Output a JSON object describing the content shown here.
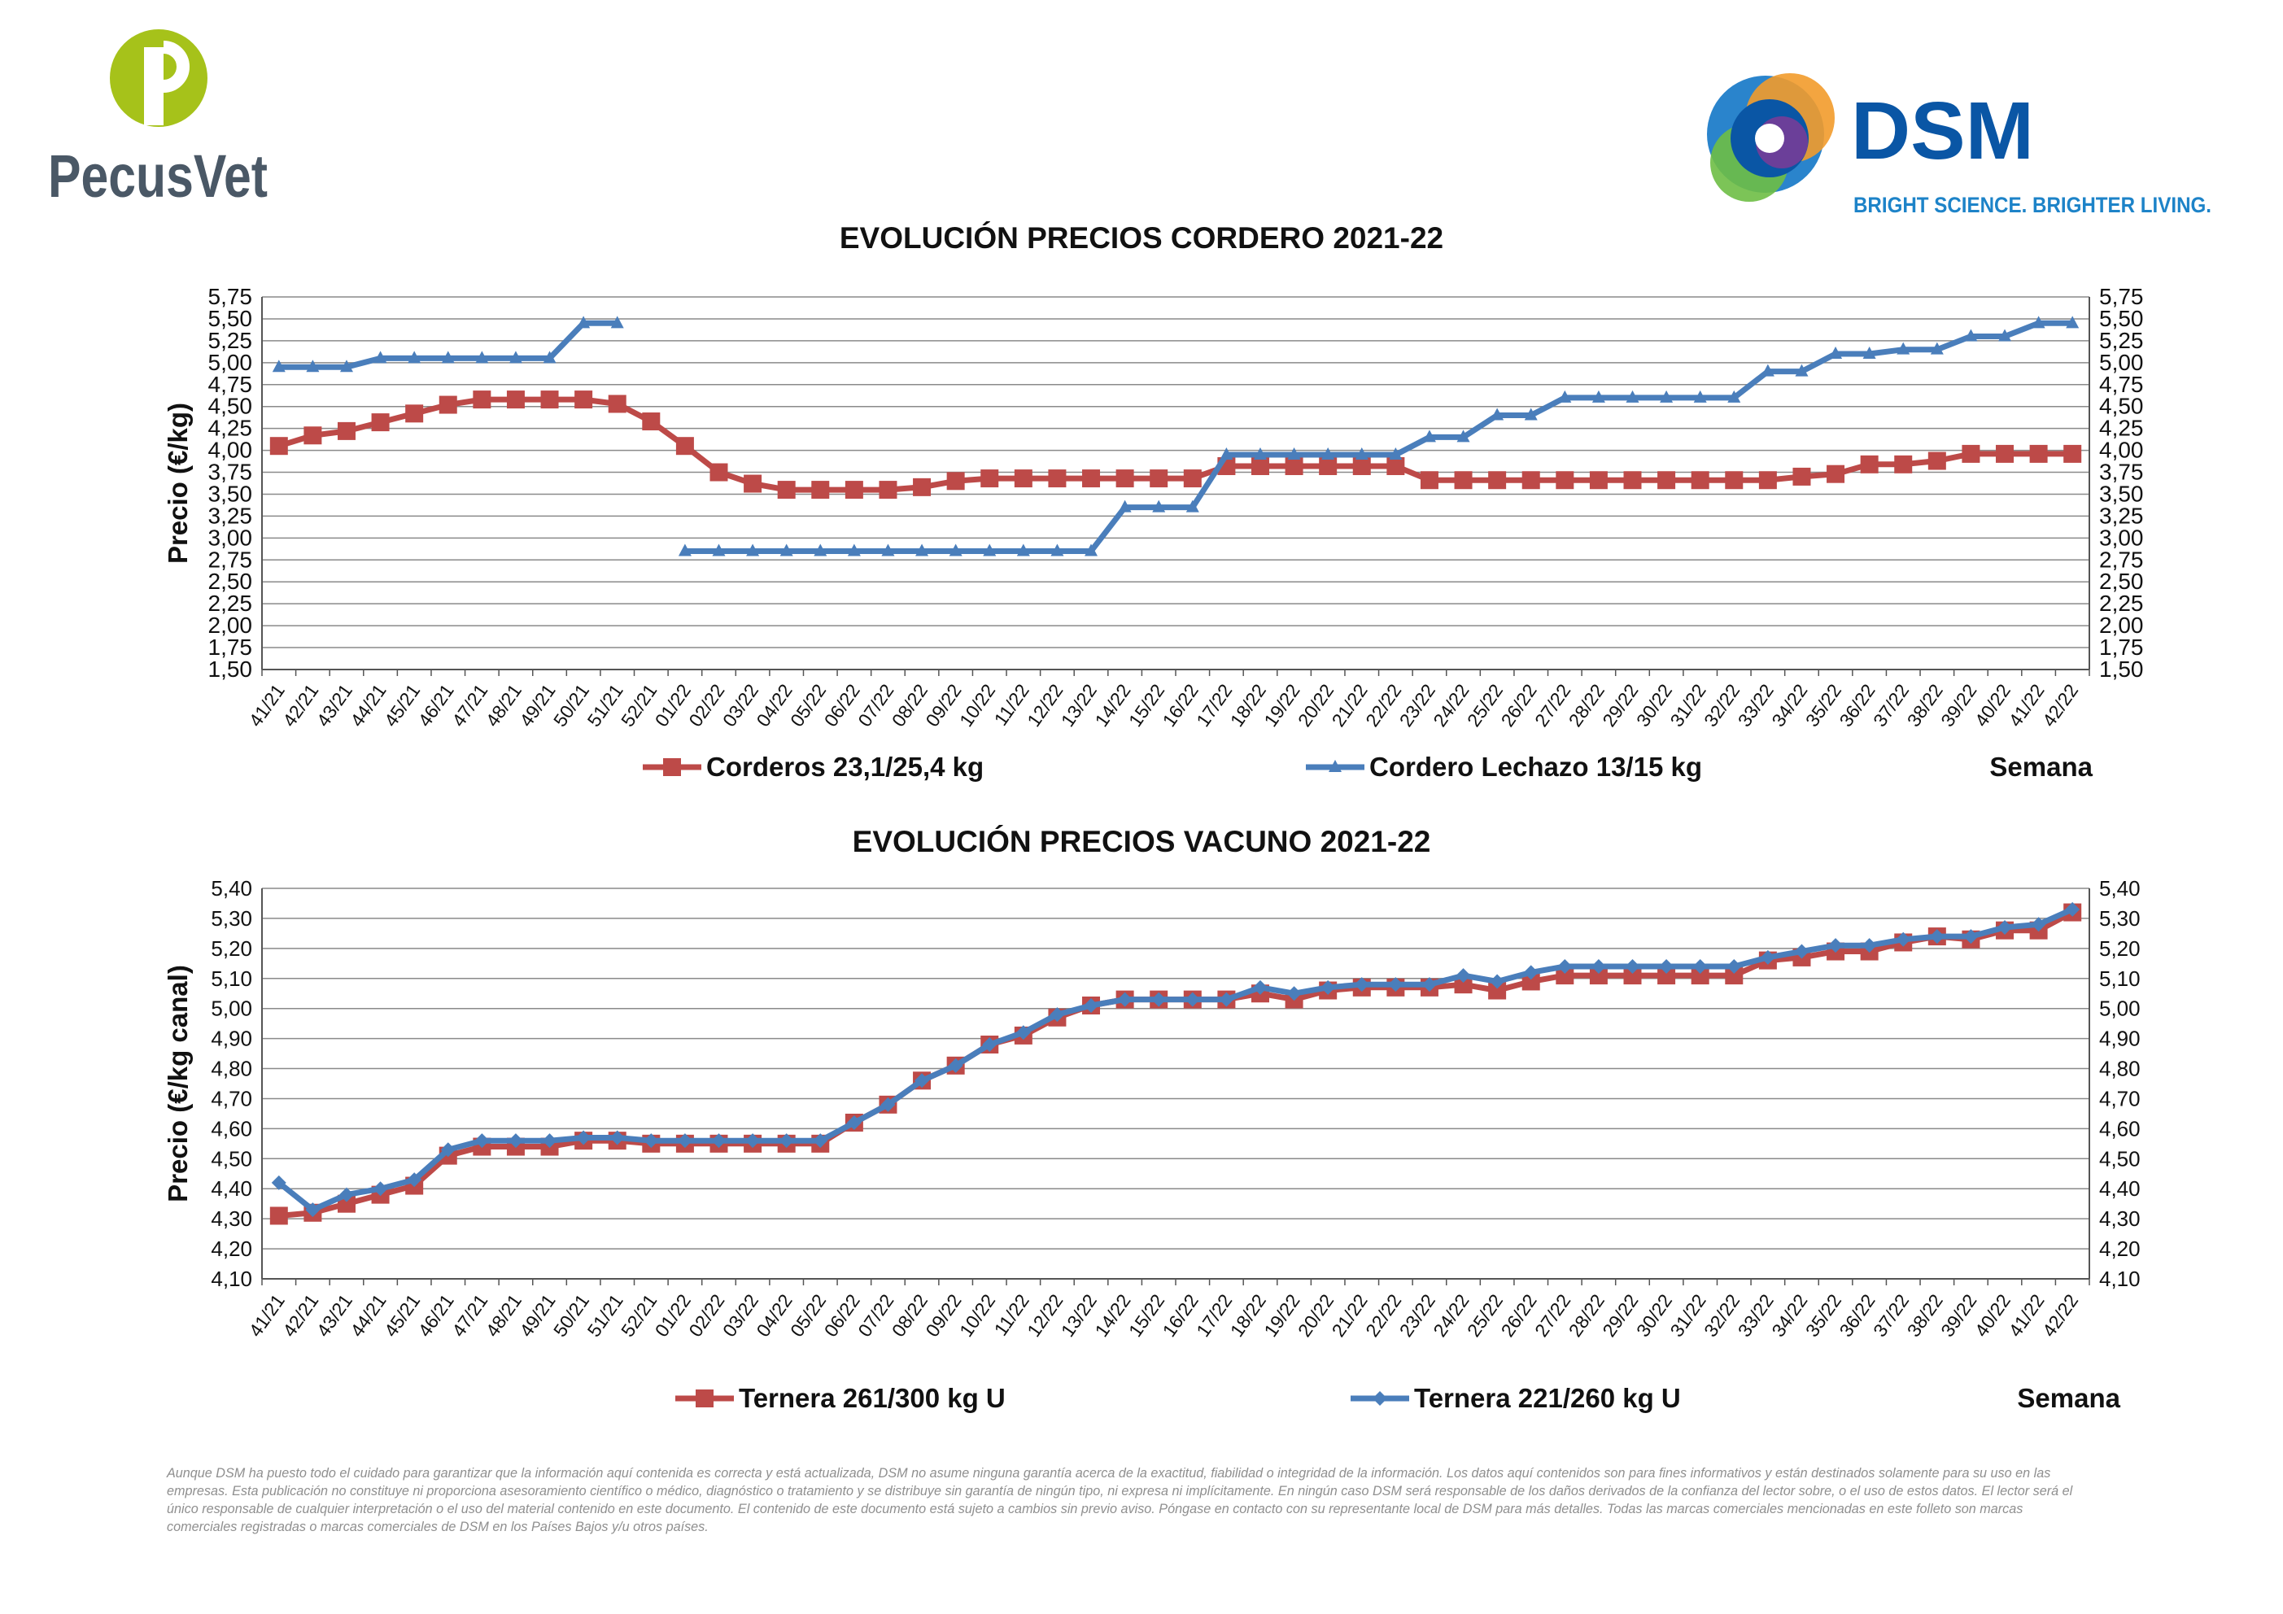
{
  "brand": {
    "left_logo_text": "PecusVet",
    "right_logo_text": "DSM",
    "right_logo_tagline": "BRIGHT SCIENCE. BRIGHTER LIVING.",
    "colors": {
      "pecusvet_green": "#a6c21a",
      "pecusvet_gray": "#4a5866",
      "dsm_blue": "#0a56a5",
      "dsm_tagline": "#1d83c8"
    }
  },
  "chart_data": [
    {
      "type": "line",
      "title": "EVOLUCIÓN PRECIOS CORDERO 2021-22",
      "ylabel": "Precio (€/kg)",
      "xlabel": "Semana",
      "ylim": [
        1.5,
        5.75
      ],
      "ytick_step": 0.25,
      "grid": true,
      "legend_position": "bottom",
      "categories": [
        "41/21",
        "42/21",
        "43/21",
        "44/21",
        "45/21",
        "46/21",
        "47/21",
        "48/21",
        "49/21",
        "50/21",
        "51/21",
        "52/21",
        "01/22",
        "02/22",
        "03/22",
        "04/22",
        "05/22",
        "06/22",
        "07/22",
        "08/22",
        "09/22",
        "10/22",
        "11/22",
        "12/22",
        "13/22",
        "14/22",
        "15/22",
        "16/22",
        "17/22",
        "18/22",
        "19/22",
        "20/22",
        "21/22",
        "22/22",
        "23/22",
        "24/22",
        "25/22",
        "26/22",
        "27/22",
        "28/22",
        "29/22",
        "30/22",
        "31/22",
        "32/22",
        "33/22",
        "34/22",
        "35/22",
        "36/22",
        "37/22",
        "38/22",
        "39/22",
        "40/22",
        "41/22",
        "42/22"
      ],
      "series": [
        {
          "name": "Corderos 23,1/25,4 kg",
          "color": "#bd4a48",
          "marker": "square",
          "values": [
            4.05,
            4.17,
            4.22,
            4.32,
            4.42,
            4.52,
            4.58,
            4.58,
            4.58,
            4.58,
            4.53,
            4.33,
            4.05,
            3.75,
            3.62,
            3.55,
            3.55,
            3.55,
            3.55,
            3.58,
            3.65,
            3.68,
            3.68,
            3.68,
            3.68,
            3.68,
            3.68,
            3.68,
            3.82,
            3.82,
            3.82,
            3.82,
            3.82,
            3.82,
            3.66,
            3.66,
            3.66,
            3.66,
            3.66,
            3.66,
            3.66,
            3.66,
            3.66,
            3.66,
            3.66,
            3.7,
            3.73,
            3.84,
            3.84,
            3.88,
            3.96,
            3.96,
            3.96,
            3.96
          ]
        },
        {
          "name": "Cordero Lechazo 13/15 kg",
          "color": "#4a7ebb",
          "marker": "triangle",
          "values": [
            4.95,
            4.95,
            4.95,
            5.05,
            5.05,
            5.05,
            5.05,
            5.05,
            5.05,
            5.45,
            5.45,
            null,
            2.85,
            2.85,
            2.85,
            2.85,
            2.85,
            2.85,
            2.85,
            2.85,
            2.85,
            2.85,
            2.85,
            2.85,
            2.85,
            3.35,
            3.35,
            3.35,
            3.95,
            3.95,
            3.95,
            3.95,
            3.95,
            3.95,
            4.15,
            4.15,
            4.4,
            4.4,
            4.6,
            4.6,
            4.6,
            4.6,
            4.6,
            4.6,
            4.9,
            4.9,
            5.1,
            5.1,
            5.15,
            5.15,
            5.3,
            5.3,
            5.45,
            5.45
          ]
        }
      ]
    },
    {
      "type": "line",
      "title": "EVOLUCIÓN PRECIOS VACUNO 2021-22",
      "ylabel": "Precio (€/kg canal)",
      "xlabel": "Semana",
      "ylim": [
        4.1,
        5.4
      ],
      "ytick_step": 0.1,
      "grid": true,
      "legend_position": "bottom",
      "categories": [
        "41/21",
        "42/21",
        "43/21",
        "44/21",
        "45/21",
        "46/21",
        "47/21",
        "48/21",
        "49/21",
        "50/21",
        "51/21",
        "52/21",
        "01/22",
        "02/22",
        "03/22",
        "04/22",
        "05/22",
        "06/22",
        "07/22",
        "08/22",
        "09/22",
        "10/22",
        "11/22",
        "12/22",
        "13/22",
        "14/22",
        "15/22",
        "16/22",
        "17/22",
        "18/22",
        "19/22",
        "20/22",
        "21/22",
        "22/22",
        "23/22",
        "24/22",
        "25/22",
        "26/22",
        "27/22",
        "28/22",
        "29/22",
        "30/22",
        "31/22",
        "32/22",
        "33/22",
        "34/22",
        "35/22",
        "36/22",
        "37/22",
        "38/22",
        "39/22",
        "40/22",
        "41/22",
        "42/22"
      ],
      "series": [
        {
          "name": "Ternera 261/300 kg U",
          "color": "#bd4a48",
          "marker": "square",
          "values": [
            4.31,
            4.32,
            4.35,
            4.38,
            4.41,
            4.51,
            4.54,
            4.54,
            4.54,
            4.56,
            4.56,
            4.55,
            4.55,
            4.55,
            4.55,
            4.55,
            4.55,
            4.62,
            4.68,
            4.76,
            4.81,
            4.88,
            4.91,
            4.97,
            5.01,
            5.03,
            5.03,
            5.03,
            5.03,
            5.05,
            5.03,
            5.06,
            5.07,
            5.07,
            5.07,
            5.08,
            5.06,
            5.09,
            5.11,
            5.11,
            5.11,
            5.11,
            5.11,
            5.11,
            5.16,
            5.17,
            5.19,
            5.19,
            5.22,
            5.24,
            5.23,
            5.26,
            5.26,
            5.32
          ]
        },
        {
          "name": "Ternera 221/260 kg U",
          "color": "#4a7ebb",
          "marker": "diamond",
          "values": [
            4.42,
            4.33,
            4.38,
            4.4,
            4.43,
            4.53,
            4.56,
            4.56,
            4.56,
            4.57,
            4.57,
            4.56,
            4.56,
            4.56,
            4.56,
            4.56,
            4.56,
            4.62,
            4.68,
            4.76,
            4.81,
            4.88,
            4.92,
            4.98,
            5.01,
            5.03,
            5.03,
            5.03,
            5.03,
            5.07,
            5.05,
            5.07,
            5.08,
            5.08,
            5.08,
            5.11,
            5.09,
            5.12,
            5.14,
            5.14,
            5.14,
            5.14,
            5.14,
            5.14,
            5.17,
            5.19,
            5.21,
            5.21,
            5.23,
            5.24,
            5.24,
            5.27,
            5.28,
            5.33
          ]
        }
      ]
    }
  ],
  "disclaimer": "Aunque DSM ha puesto todo el cuidado para garantizar que la información aquí contenida es correcta y está actualizada, DSM no asume ninguna garantía acerca de la exactitud, fiabilidad o integridad de la información. Los datos aquí contenidos son para fines informativos y están destinados solamente para su uso en las empresas. Esta publicación no constituye ni proporciona asesoramiento científico o médico, diagnóstico o tratamiento y se distribuye sin garantía de ningún tipo, ni expresa ni implícitamente. En ningún caso DSM será responsable de los daños derivados de la confianza del lector sobre, o el uso de estos datos. El lector será el único responsable de cualquier interpretación o el uso del material contenido en este documento. El contenido de este documento está sujeto a cambios sin previo aviso. Póngase en contacto con su representante local de DSM para más detalles. Todas las marcas comerciales mencionadas en este folleto son marcas comerciales registradas o marcas comerciales de DSM en los Países Bajos y/u otros países."
}
